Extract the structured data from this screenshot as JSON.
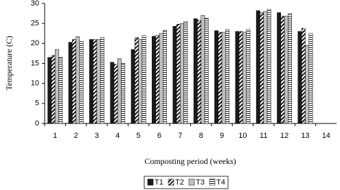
{
  "chart_data": {
    "type": "bar",
    "x_label": "Composting period (weeks)",
    "y_label": "Temperature (C)",
    "categories": [
      "1",
      "2",
      "3",
      "4",
      "5",
      "6",
      "7",
      "8",
      "9",
      "10",
      "11",
      "12",
      "13",
      "14"
    ],
    "series": [
      {
        "name": "T1",
        "color": "#1a1a1a",
        "pattern": "solid",
        "values": [
          16.5,
          20.3,
          21,
          15.3,
          18.5,
          21.8,
          24.3,
          26.2,
          23.2,
          23,
          28.2,
          27.7,
          23,
          null
        ]
      },
      {
        "name": "T2",
        "color": "#1a1a1a",
        "pattern": "diagonal",
        "values": [
          17,
          21,
          21,
          14.8,
          21.5,
          22,
          24.8,
          25.8,
          22.8,
          23,
          27.7,
          26.8,
          23.8,
          null
        ]
      },
      {
        "name": "T3",
        "color": "#c0c0c0",
        "pattern": "solid",
        "values": [
          18.5,
          21.7,
          21,
          16.2,
          21,
          22.5,
          25,
          27,
          22.8,
          22.8,
          28,
          26.8,
          19.5,
          null
        ]
      },
      {
        "name": "T4",
        "color": "#1a1a1a",
        "pattern": "horizontal",
        "values": [
          16.5,
          20.5,
          21.5,
          15,
          22,
          23.3,
          25.5,
          26.3,
          23.5,
          23.5,
          28.5,
          27.5,
          22.5,
          null
        ]
      }
    ],
    "ylim": [
      0,
      30
    ],
    "yticks": [
      0,
      5,
      10,
      15,
      20,
      25,
      30
    ]
  }
}
